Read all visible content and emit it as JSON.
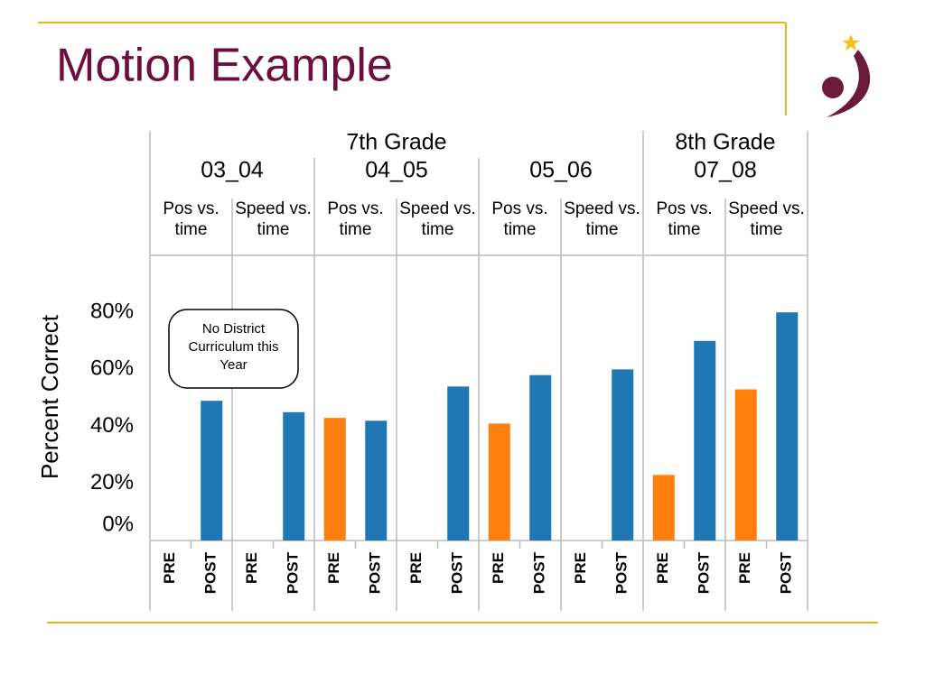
{
  "chart_data": {
    "type": "bar",
    "title": "Motion Example",
    "y_label": "Percent Correct",
    "annotation": "No District Curriculum this Year",
    "grades": [
      {
        "name": "7th Grade",
        "years": [
          "03_04",
          "04_05",
          "05_06"
        ]
      },
      {
        "name": "8th Grade",
        "years": [
          "07_08"
        ]
      }
    ],
    "categories": [
      "Pos vs. time",
      "Speed vs. time",
      "Pos vs. time",
      "Speed vs. time",
      "Pos vs. time",
      "Speed vs. time",
      "Pos vs. time",
      "Speed vs. time"
    ],
    "series": [
      {
        "name": "PRE",
        "color": "#ff7f0e",
        "values": [
          null,
          null,
          43,
          null,
          41,
          null,
          23,
          53
        ]
      },
      {
        "name": "POST",
        "color": "#1f77b4",
        "values": [
          49,
          45,
          42,
          54,
          58,
          60,
          70,
          80
        ]
      }
    ],
    "ylim": [
      0,
      100
    ],
    "yticks": [
      {
        "value": 0,
        "label": "0%"
      },
      {
        "value": 20,
        "label": "20%"
      },
      {
        "value": 40,
        "label": "40%"
      },
      {
        "value": 60,
        "label": "60%"
      },
      {
        "value": 80,
        "label": "80%"
      }
    ]
  }
}
